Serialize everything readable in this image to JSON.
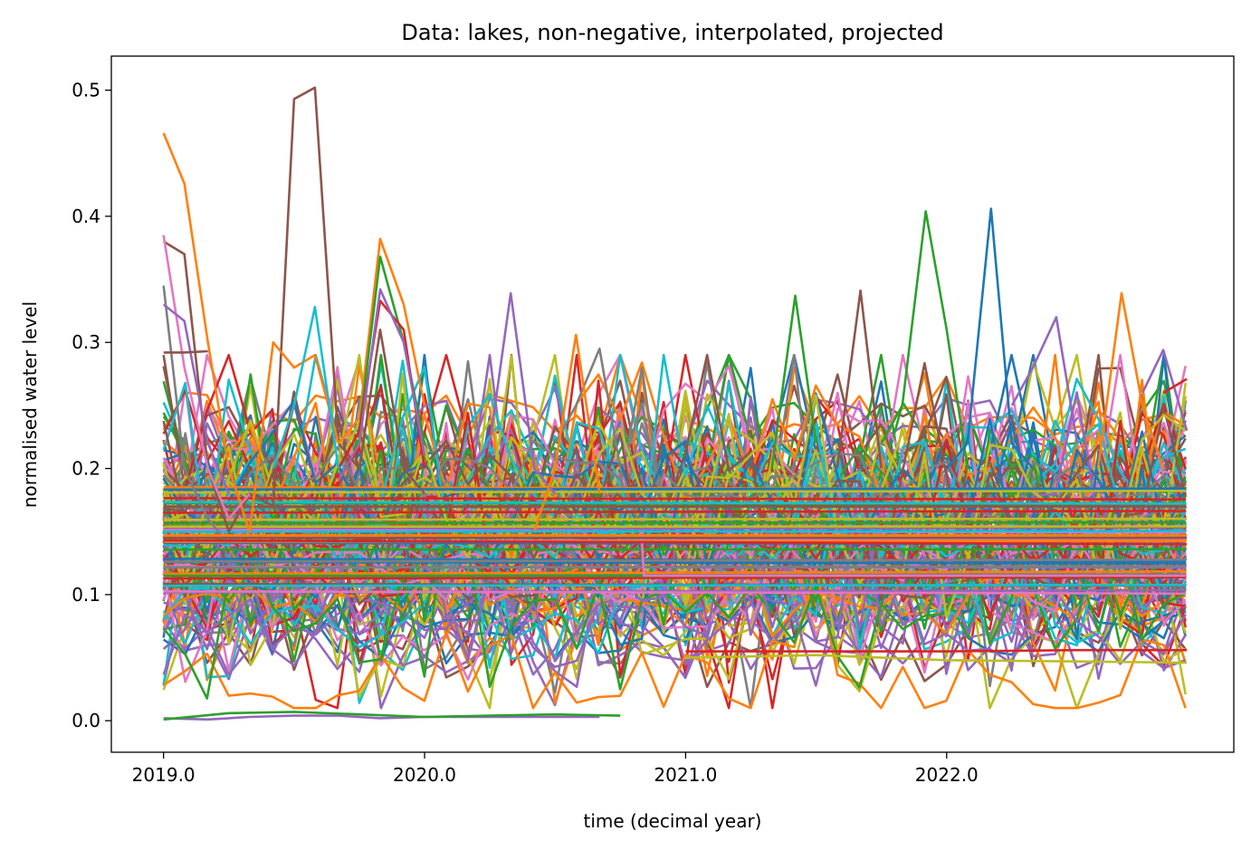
{
  "chart_data": {
    "type": "line",
    "title": "Data: lakes, non-negative, interpolated, projected",
    "xlabel": "time (decimal year)",
    "ylabel": "normalised water level",
    "xlim": [
      2018.8,
      2023.1
    ],
    "ylim": [
      -0.025,
      0.527
    ],
    "xticks": [
      2019.0,
      2020.0,
      2021.0,
      2022.0
    ],
    "xtick_labels": [
      "2019.0",
      "2020.0",
      "2021.0",
      "2022.0"
    ],
    "yticks": [
      0.0,
      0.1,
      0.2,
      0.3,
      0.4,
      0.5
    ],
    "ytick_labels": [
      "0.0",
      "0.1",
      "0.2",
      "0.3",
      "0.4",
      "0.5"
    ],
    "grid": false,
    "legend": "none",
    "x_range": [
      2019.0,
      2022.917
    ],
    "x_step": 0.0833,
    "palette": [
      "#1f77b4",
      "#ff7f0e",
      "#2ca02c",
      "#d62728",
      "#9467bd",
      "#8c564b",
      "#e377c2",
      "#7f7f7f",
      "#bcbd22",
      "#17becf"
    ],
    "series": [
      {
        "color": "#8c564b",
        "peaks": [
          [
            2019.5,
            0.493
          ],
          [
            2019.58,
            0.502
          ]
        ],
        "x": [
          2019.0,
          2019.08,
          2019.17,
          2019.25,
          2019.33,
          2019.42,
          2019.5,
          2019.58,
          2019.67,
          2019.75,
          2019.83,
          2019.92,
          2020.0
        ],
        "y": [
          0.38,
          0.37,
          0.2,
          0.15,
          0.18,
          0.17,
          0.493,
          0.502,
          0.22,
          0.2,
          0.31,
          0.2,
          0.18
        ]
      },
      {
        "color": "#ff7f0e",
        "x": [
          2019.0,
          2019.08,
          2019.17,
          2019.25,
          2019.33,
          2019.42,
          2019.5,
          2019.58,
          2019.67,
          2019.75,
          2019.83,
          2019.92,
          2020.0
        ],
        "y": [
          0.466,
          0.426,
          0.3,
          0.2,
          0.15,
          0.3,
          0.28,
          0.29,
          0.22,
          0.24,
          0.382,
          0.33,
          0.25
        ]
      },
      {
        "color": "#e377c2",
        "x": [
          2019.0,
          2019.08,
          2019.17,
          2019.25,
          2019.33
        ],
        "y": [
          0.385,
          0.28,
          0.2,
          0.16,
          0.18
        ]
      },
      {
        "color": "#7f7f7f",
        "x": [
          2019.0,
          2019.08,
          2019.17,
          2019.25
        ],
        "y": [
          0.345,
          0.2,
          0.16,
          0.14
        ]
      },
      {
        "color": "#9467bd",
        "x": [
          2019.0,
          2019.08,
          2019.17,
          2019.25
        ],
        "y": [
          0.33,
          0.317,
          0.22,
          0.18
        ]
      },
      {
        "color": "#8c564b",
        "x": [
          2019.0,
          2019.08,
          2019.17
        ],
        "y": [
          0.292,
          0.292,
          0.293
        ]
      },
      {
        "color": "#2ca02c",
        "x": [
          2019.67,
          2019.75,
          2019.83,
          2019.92,
          2020.0
        ],
        "y": [
          0.2,
          0.23,
          0.368,
          0.3,
          0.22
        ]
      },
      {
        "color": "#d62728",
        "x": [
          2019.67,
          2019.75,
          2019.83,
          2019.92,
          2020.0
        ],
        "y": [
          0.2,
          0.23,
          0.333,
          0.31,
          0.2
        ]
      },
      {
        "color": "#9467bd",
        "x": [
          2019.67,
          2019.75,
          2019.83,
          2019.92,
          2020.0
        ],
        "y": [
          0.19,
          0.22,
          0.342,
          0.3,
          0.21
        ]
      },
      {
        "color": "#17becf",
        "x": [
          2019.42,
          2019.5,
          2019.58,
          2019.67
        ],
        "y": [
          0.2,
          0.25,
          0.328,
          0.2
        ]
      },
      {
        "color": "#9467bd",
        "x": [
          2020.17,
          2020.25,
          2020.33,
          2020.42,
          2020.5
        ],
        "y": [
          0.2,
          0.22,
          0.339,
          0.2,
          0.18
        ]
      },
      {
        "color": "#7f7f7f",
        "x": [
          2020.5,
          2020.58,
          2020.67,
          2020.75
        ],
        "y": [
          0.22,
          0.25,
          0.295,
          0.2
        ]
      },
      {
        "color": "#ff7f0e",
        "x": [
          2020.42,
          2020.5,
          2020.58,
          2020.67
        ],
        "y": [
          0.15,
          0.2,
          0.306,
          0.18
        ]
      },
      {
        "color": "#2ca02c",
        "x": [
          2021.33,
          2021.42,
          2021.5
        ],
        "y": [
          0.2,
          0.337,
          0.22
        ]
      },
      {
        "color": "#8c564b",
        "x": [
          2021.58,
          2021.67,
          2021.75
        ],
        "y": [
          0.2,
          0.341,
          0.2
        ]
      },
      {
        "color": "#2ca02c",
        "x": [
          2021.75,
          2021.83,
          2021.92,
          2022.0,
          2022.08
        ],
        "y": [
          0.22,
          0.25,
          0.404,
          0.31,
          0.2
        ]
      },
      {
        "color": "#1f77b4",
        "x": [
          2022.0,
          2022.08,
          2022.17,
          2022.25,
          2022.33
        ],
        "y": [
          0.2,
          0.22,
          0.406,
          0.22,
          0.2
        ]
      },
      {
        "color": "#9467bd",
        "x": [
          2022.25,
          2022.33,
          2022.42,
          2022.5
        ],
        "y": [
          0.25,
          0.28,
          0.32,
          0.22
        ]
      },
      {
        "color": "#ff7f0e",
        "x": [
          2022.58,
          2022.67,
          2022.75,
          2022.83
        ],
        "y": [
          0.2,
          0.339,
          0.25,
          0.2
        ]
      },
      {
        "color": "#9467bd",
        "x": [
          2022.75,
          2022.83,
          2022.92
        ],
        "y": [
          0.26,
          0.294,
          0.23
        ]
      },
      {
        "color": "#d62728",
        "x": [
          2022.83,
          2022.92
        ],
        "y": [
          0.26,
          0.271
        ]
      },
      {
        "color": "#9467bd",
        "x": [
          2019.0,
          2019.17,
          2019.33,
          2019.5,
          2019.67,
          2019.83,
          2020.0,
          2020.17,
          2020.33,
          2020.5,
          2020.67
        ],
        "y": [
          0.002,
          0.001,
          0.003,
          0.004,
          0.004,
          0.002,
          0.003,
          0.003,
          0.003,
          0.003,
          0.003
        ]
      },
      {
        "color": "#2ca02c",
        "x": [
          2019.0,
          2019.25,
          2019.5,
          2019.75,
          2020.0,
          2020.25,
          2020.5,
          2020.75
        ],
        "y": [
          0.001,
          0.006,
          0.007,
          0.005,
          0.003,
          0.004,
          0.005,
          0.004
        ]
      },
      {
        "color": "#bcbd22",
        "x": [
          2021.0,
          2021.5,
          2022.0,
          2022.5,
          2022.92
        ],
        "y": [
          0.05,
          0.052,
          0.048,
          0.047,
          0.046
        ]
      },
      {
        "color": "#d62728",
        "x": [
          2021.0,
          2021.5,
          2022.0,
          2022.5,
          2022.92
        ],
        "y": [
          0.055,
          0.055,
          0.055,
          0.056,
          0.056
        ]
      },
      {
        "color": "#e377c2",
        "x": [
          2020.83,
          2020.84,
          2022.92
        ],
        "y": [
          0.15,
          0.115,
          0.115
        ]
      },
      {
        "color": "#8c564b",
        "x": [
          2019.0,
          2022.92
        ],
        "y": [
          0.145,
          0.145
        ]
      },
      {
        "color": "#d62728",
        "x": [
          2019.0,
          2022.92
        ],
        "y": [
          0.143,
          0.14
        ]
      },
      {
        "color": "#ff7f0e",
        "x": [
          2019.0,
          2022.92
        ],
        "y": [
          0.147,
          0.147
        ]
      }
    ]
  }
}
